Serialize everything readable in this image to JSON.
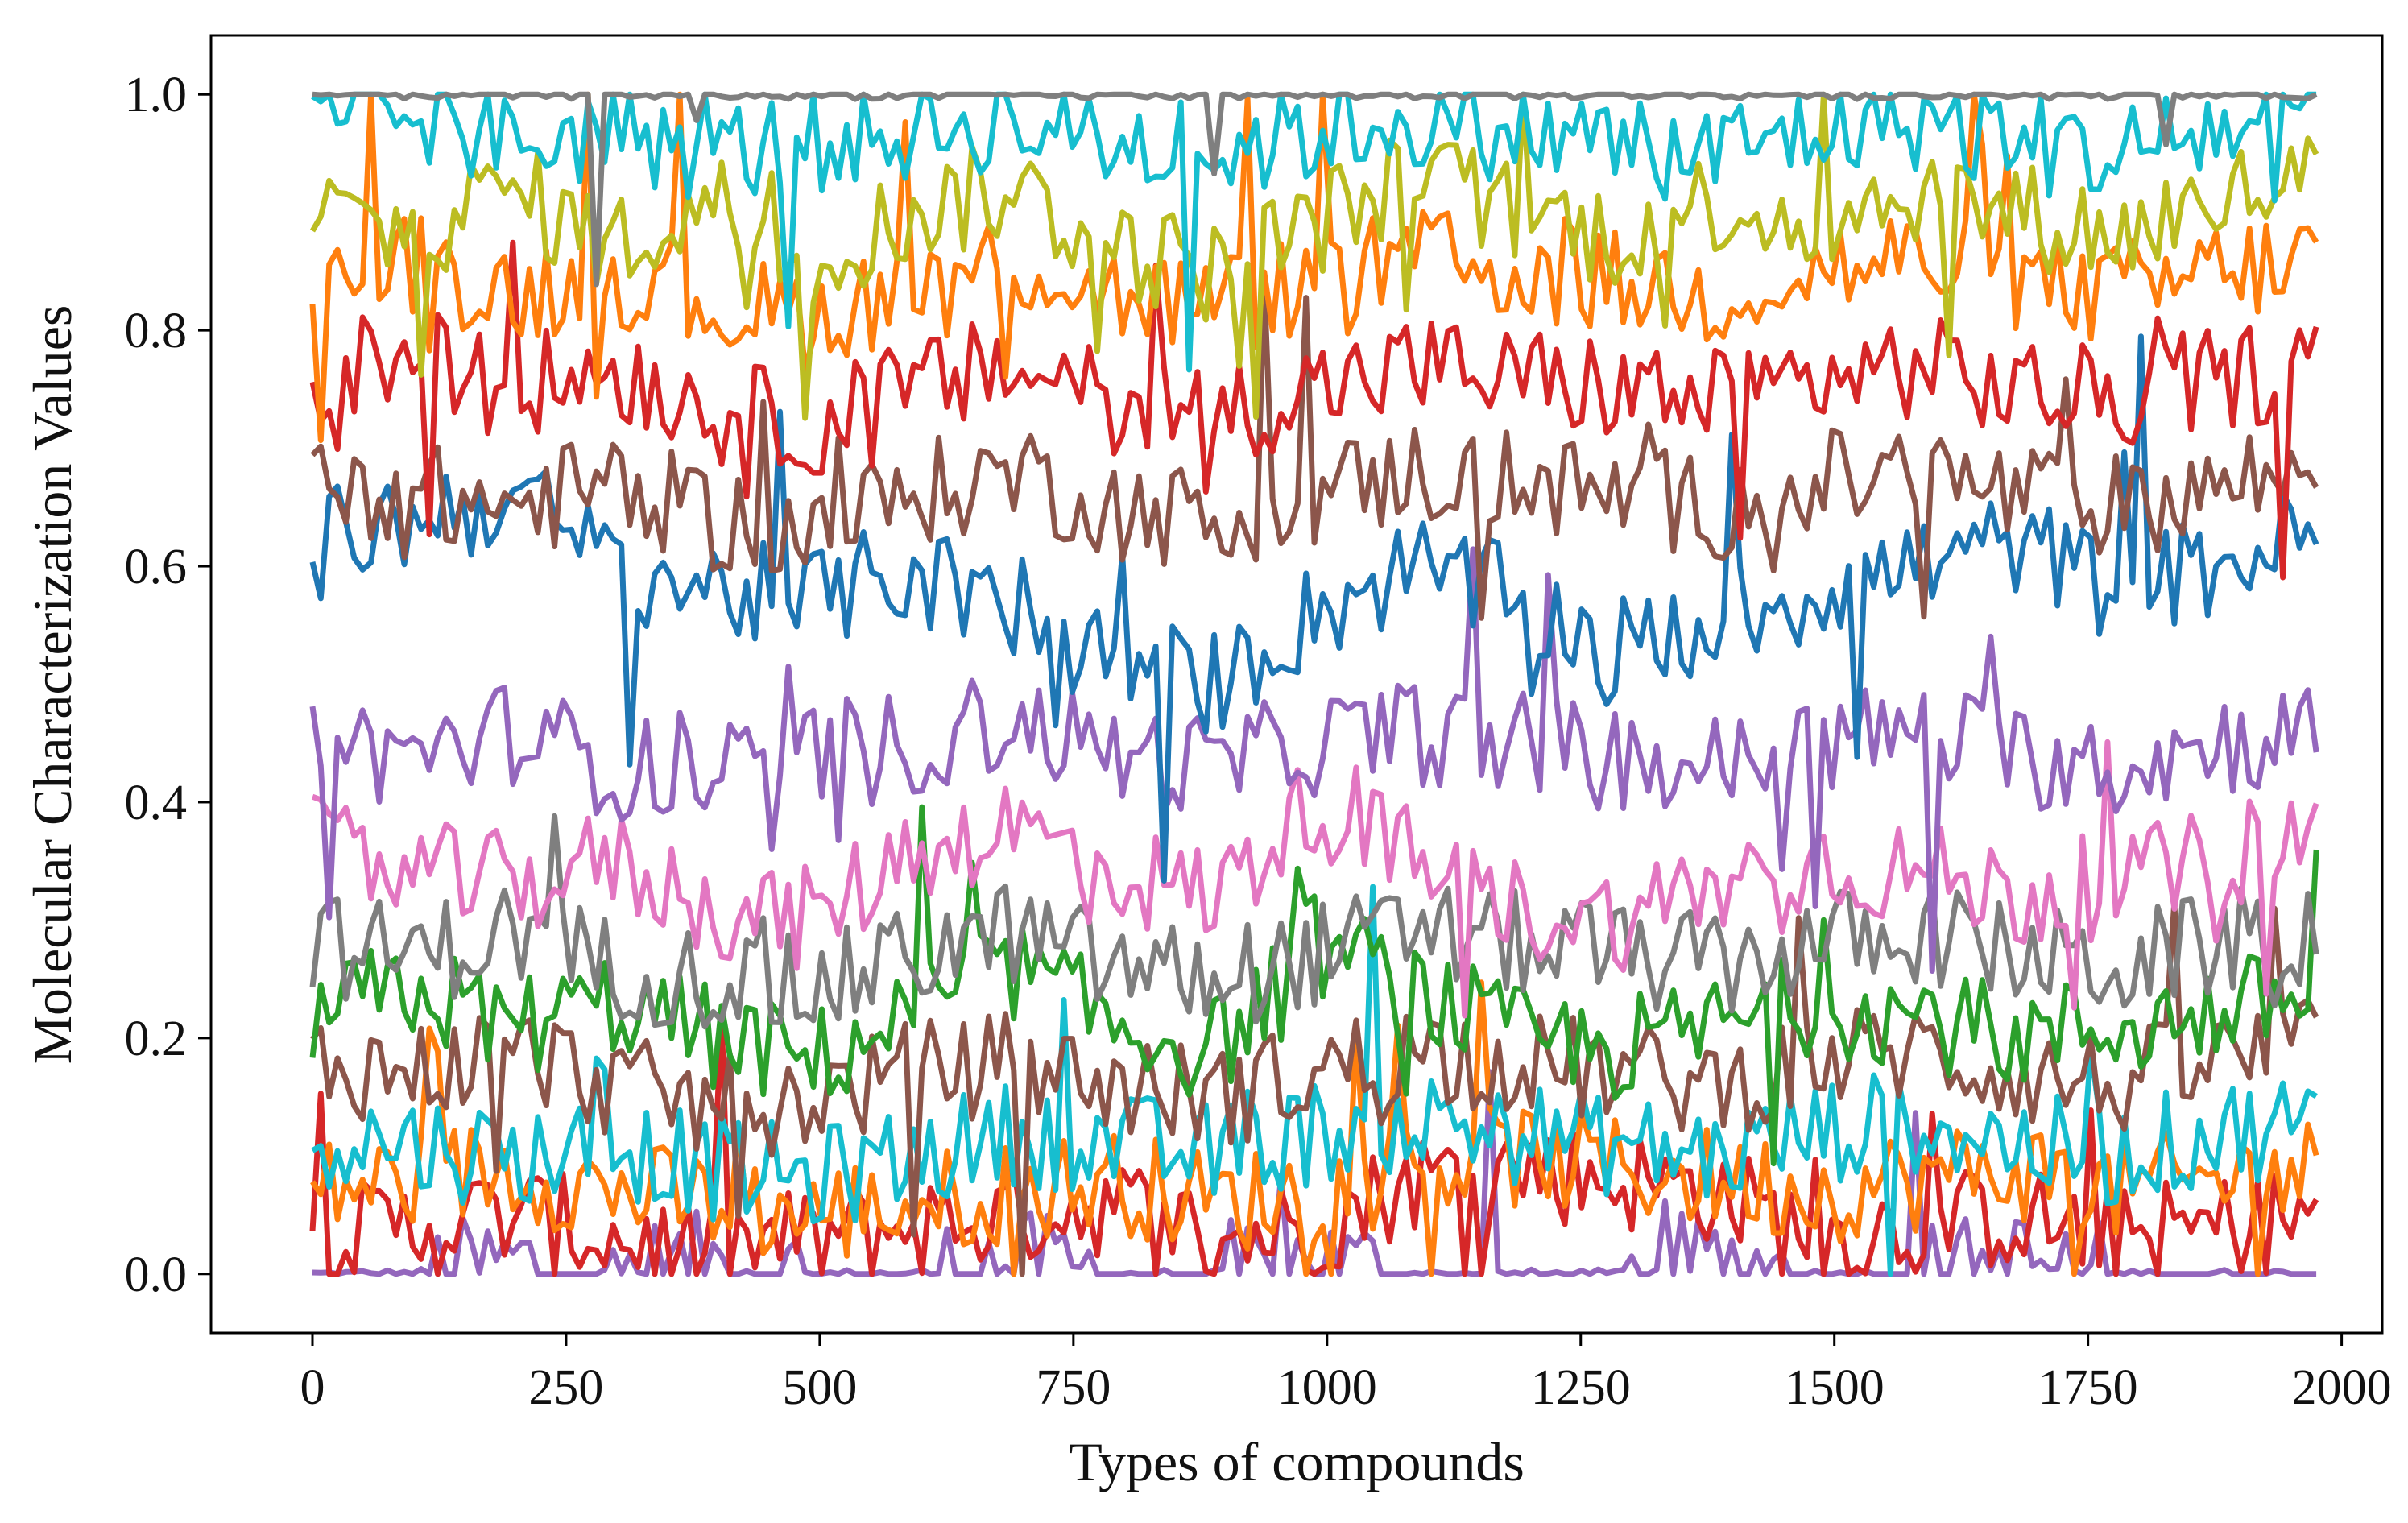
{
  "chart_data": {
    "type": "line",
    "xlabel": "Types of compounds",
    "ylabel": "Molecular Characterization Values",
    "xlim": [
      -100,
      2040
    ],
    "ylim": [
      -0.05,
      1.05
    ],
    "xticks": [
      0,
      250,
      500,
      750,
      1000,
      1250,
      1500,
      1750,
      2000
    ],
    "xtick_labels": [
      "0",
      "250",
      "500",
      "750",
      "1000",
      "1250",
      "1500",
      "1750",
      "2000"
    ],
    "yticks": [
      0.0,
      0.2,
      0.4,
      0.6,
      0.8,
      1.0
    ],
    "ytick_labels": [
      "0.0",
      "0.2",
      "0.4",
      "0.6",
      "0.8",
      "1.0"
    ],
    "x_range": [
      0,
      1975
    ],
    "grid": false,
    "legend": "none",
    "palette": [
      "#1f77b4",
      "#ff7f0e",
      "#2ca02c",
      "#d62728",
      "#9467bd",
      "#8c564b",
      "#e377c2",
      "#7f7f7f",
      "#bcbd22",
      "#17becf"
    ],
    "series": [
      {
        "color": "#9467bd",
        "y": [
          0.0,
          0.0,
          0.01,
          0.0,
          0.01,
          0.0,
          0.0,
          0.01,
          0.0,
          0.0,
          0.01,
          0.0,
          0.0,
          0.0,
          0.01,
          0.0,
          0.0,
          0.01,
          0.0,
          0.0,
          0.0
        ]
      },
      {
        "color": "#d62728",
        "y": [
          0.03,
          0.04,
          0.05,
          0.03,
          0.02,
          0.03,
          0.04,
          0.05,
          0.06,
          0.03,
          0.04,
          0.08,
          0.09,
          0.08,
          0.07,
          0.03,
          0.04,
          0.05,
          0.03,
          0.04,
          0.05
        ]
      },
      {
        "color": "#ff7f0e",
        "y": [
          0.07,
          0.08,
          0.09,
          0.07,
          0.06,
          0.05,
          0.06,
          0.07,
          0.08,
          0.06,
          0.07,
          0.09,
          0.1,
          0.09,
          0.08,
          0.07,
          0.08,
          0.09,
          0.07,
          0.08,
          0.09
        ]
      },
      {
        "color": "#17becf",
        "y": [
          0.12,
          0.11,
          0.1,
          0.11,
          0.09,
          0.08,
          0.1,
          0.12,
          0.11,
          0.1,
          0.12,
          0.13,
          0.12,
          0.11,
          0.1,
          0.12,
          0.13,
          0.11,
          0.1,
          0.12,
          0.13
        ]
      },
      {
        "color": "#8c564b",
        "y": [
          0.18,
          0.17,
          0.19,
          0.16,
          0.14,
          0.15,
          0.17,
          0.18,
          0.16,
          0.15,
          0.17,
          0.19,
          0.18,
          0.17,
          0.16,
          0.18,
          0.19,
          0.17,
          0.16,
          0.18,
          0.19
        ]
      },
      {
        "color": "#2ca02c",
        "y": [
          0.22,
          0.24,
          0.21,
          0.23,
          0.2,
          0.18,
          0.22,
          0.26,
          0.21,
          0.19,
          0.28,
          0.24,
          0.2,
          0.19,
          0.21,
          0.23,
          0.22,
          0.2,
          0.21,
          0.22,
          0.24
        ]
      },
      {
        "color": "#7f7f7f",
        "y": [
          0.28,
          0.27,
          0.29,
          0.26,
          0.25,
          0.24,
          0.27,
          0.29,
          0.26,
          0.25,
          0.27,
          0.29,
          0.28,
          0.27,
          0.26,
          0.28,
          0.29,
          0.27,
          0.26,
          0.28,
          0.29
        ]
      },
      {
        "color": "#e377c2",
        "y": [
          0.36,
          0.34,
          0.33,
          0.35,
          0.31,
          0.3,
          0.36,
          0.38,
          0.34,
          0.32,
          0.4,
          0.35,
          0.31,
          0.3,
          0.33,
          0.35,
          0.34,
          0.32,
          0.33,
          0.35,
          0.38
        ]
      },
      {
        "color": "#9467bd",
        "y": [
          0.45,
          0.44,
          0.46,
          0.43,
          0.42,
          0.44,
          0.45,
          0.47,
          0.44,
          0.43,
          0.45,
          0.46,
          0.45,
          0.44,
          0.43,
          0.45,
          0.46,
          0.44,
          0.43,
          0.45,
          0.46
        ]
      },
      {
        "color": "#1f77b4",
        "y": [
          0.62,
          0.64,
          0.66,
          0.6,
          0.58,
          0.57,
          0.6,
          0.55,
          0.52,
          0.5,
          0.56,
          0.6,
          0.57,
          0.53,
          0.55,
          0.58,
          0.6,
          0.62,
          0.58,
          0.6,
          0.63
        ]
      },
      {
        "color": "#8c564b",
        "y": [
          0.68,
          0.66,
          0.65,
          0.67,
          0.64,
          0.63,
          0.66,
          0.68,
          0.65,
          0.64,
          0.66,
          0.68,
          0.67,
          0.66,
          0.65,
          0.67,
          0.68,
          0.66,
          0.65,
          0.67,
          0.68
        ]
      },
      {
        "color": "#d62728",
        "y": [
          0.76,
          0.78,
          0.75,
          0.77,
          0.73,
          0.72,
          0.75,
          0.77,
          0.74,
          0.73,
          0.75,
          0.77,
          0.76,
          0.75,
          0.74,
          0.76,
          0.77,
          0.75,
          0.74,
          0.76,
          0.77
        ]
      },
      {
        "color": "#ff7f0e",
        "y": [
          0.84,
          0.86,
          0.83,
          0.85,
          0.82,
          0.81,
          0.84,
          0.86,
          0.83,
          0.82,
          0.84,
          0.86,
          0.85,
          0.84,
          0.83,
          0.85,
          0.86,
          0.84,
          0.83,
          0.85,
          0.86
        ]
      },
      {
        "color": "#bcbd22",
        "y": [
          0.9,
          0.88,
          0.92,
          0.87,
          0.91,
          0.86,
          0.9,
          0.92,
          0.87,
          0.85,
          0.89,
          0.93,
          0.9,
          0.88,
          0.91,
          0.89,
          0.92,
          0.9,
          0.88,
          0.91,
          0.93
        ]
      },
      {
        "color": "#17becf",
        "y": [
          0.97,
          0.98,
          0.96,
          0.97,
          0.95,
          0.96,
          0.97,
          0.98,
          0.96,
          0.95,
          0.97,
          0.98,
          0.97,
          0.96,
          0.95,
          0.97,
          0.98,
          0.96,
          0.95,
          0.97,
          0.98
        ]
      },
      {
        "color": "#7f7f7f",
        "y": [
          1.0,
          1.0,
          1.0,
          1.0,
          1.0,
          1.0,
          1.0,
          1.0,
          1.0,
          1.0,
          1.0,
          1.0,
          1.0,
          1.0,
          1.0,
          1.0,
          1.0,
          1.0,
          1.0,
          1.0,
          1.0
        ]
      }
    ]
  }
}
